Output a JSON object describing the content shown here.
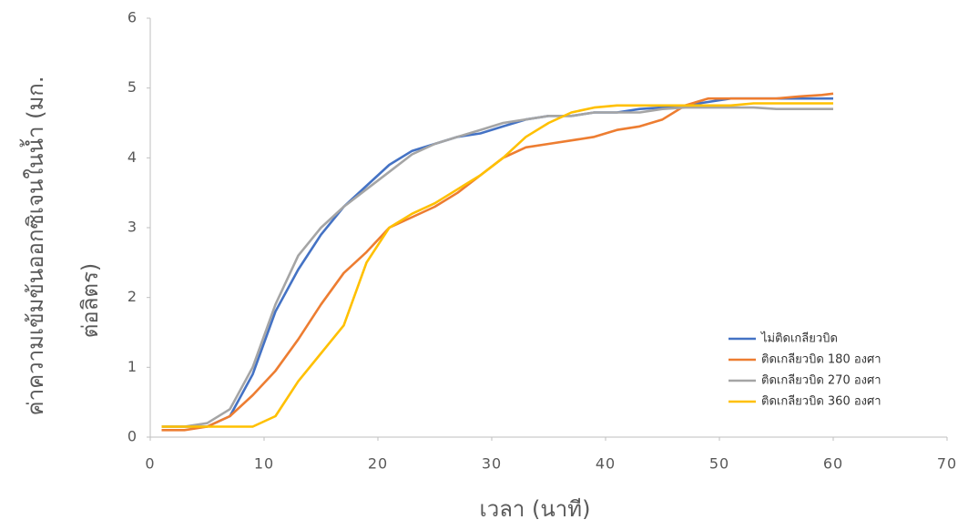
{
  "chart_data": {
    "type": "line",
    "x_label": "เวลา (นาที)",
    "y_label": [
      "ค่าความเข้มข้นออกซิเจนในน้ำ (มก.",
      "ต่อลิตร)"
    ],
    "x": [
      1,
      3,
      5,
      7,
      9,
      11,
      13,
      15,
      17,
      19,
      21,
      23,
      25,
      27,
      29,
      31,
      33,
      35,
      37,
      39,
      41,
      43,
      45,
      47,
      49,
      51,
      53,
      55,
      57,
      59,
      60
    ],
    "series": [
      {
        "name": "ไม่ติดเกลียวบิด",
        "color": "#4472c4",
        "values": [
          0.15,
          0.15,
          0.15,
          0.3,
          0.9,
          1.8,
          2.4,
          2.9,
          3.3,
          3.6,
          3.9,
          4.1,
          4.2,
          4.3,
          4.35,
          4.45,
          4.55,
          4.6,
          4.6,
          4.65,
          4.65,
          4.7,
          4.72,
          4.75,
          4.8,
          4.85,
          4.85,
          4.85,
          4.85,
          4.85,
          4.85
        ]
      },
      {
        "name": "ติดเกลียวบิด 180 องศา",
        "color": "#ed7d31",
        "values": [
          0.1,
          0.1,
          0.15,
          0.3,
          0.6,
          0.95,
          1.4,
          1.9,
          2.35,
          2.65,
          3.0,
          3.15,
          3.3,
          3.5,
          3.75,
          4.0,
          4.15,
          4.2,
          4.25,
          4.3,
          4.4,
          4.45,
          4.55,
          4.75,
          4.85,
          4.85,
          4.85,
          4.85,
          4.88,
          4.9,
          4.92
        ]
      },
      {
        "name": "ติดเกลียวบิด 270 องศา",
        "color": "#a5a5a5",
        "values": [
          0.15,
          0.15,
          0.2,
          0.4,
          1.0,
          1.9,
          2.6,
          3.0,
          3.3,
          3.55,
          3.8,
          4.05,
          4.2,
          4.3,
          4.4,
          4.5,
          4.55,
          4.6,
          4.6,
          4.65,
          4.65,
          4.65,
          4.7,
          4.72,
          4.72,
          4.72,
          4.72,
          4.7,
          4.7,
          4.7,
          4.7
        ]
      },
      {
        "name": "ติดเกลียวบิด 360 องศา",
        "color": "#ffc000",
        "values": [
          0.15,
          0.15,
          0.15,
          0.15,
          0.15,
          0.3,
          0.8,
          1.2,
          1.6,
          2.5,
          3.0,
          3.2,
          3.35,
          3.55,
          3.75,
          4.0,
          4.3,
          4.5,
          4.65,
          4.72,
          4.75,
          4.75,
          4.75,
          4.75,
          4.75,
          4.75,
          4.78,
          4.78,
          4.78,
          4.78,
          4.78
        ]
      }
    ],
    "xlim": [
      0,
      70
    ],
    "xticks": [
      0,
      10,
      20,
      30,
      40,
      50,
      60,
      70
    ],
    "ylim": [
      0,
      6
    ],
    "yticks": [
      0,
      1,
      2,
      3,
      4,
      5,
      6
    ],
    "grid": false,
    "legend": "right"
  }
}
